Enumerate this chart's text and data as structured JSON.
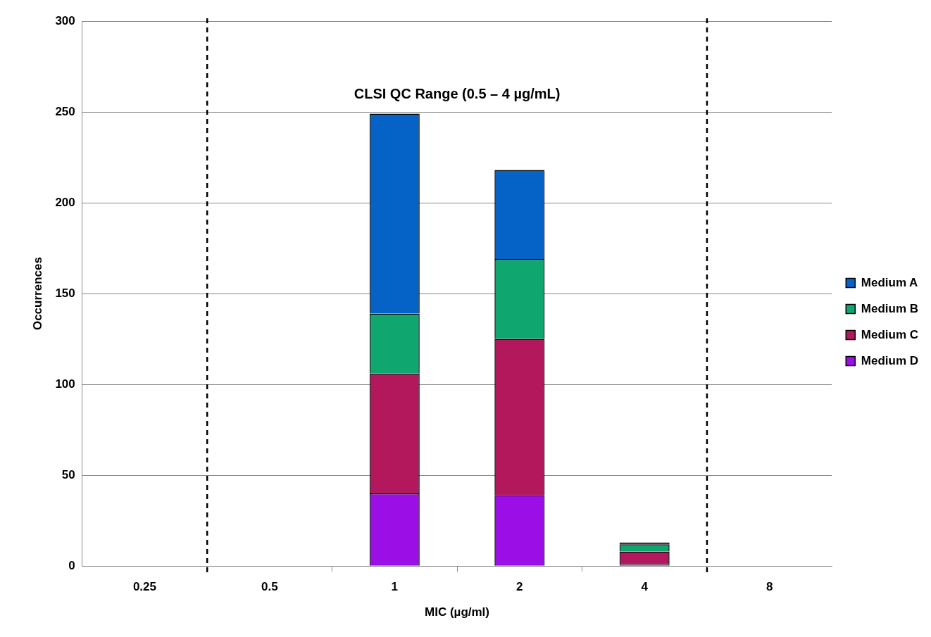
{
  "chart_data": {
    "type": "bar",
    "stacked": true,
    "xlabel": "MIC (µg/ml)",
    "ylabel": "Occurrences",
    "x": [
      0.25,
      0.5,
      1,
      2,
      4,
      8
    ],
    "log": "x",
    "xlim": [
      0.1768,
      11.31
    ],
    "xticks": [
      0.25,
      0.5,
      1,
      2,
      4,
      8
    ],
    "ylim": [
      0,
      300
    ],
    "yticks": [
      0,
      50,
      100,
      150,
      200,
      250,
      300
    ],
    "grid": "y",
    "legend": "right",
    "series": [
      {
        "name": "Medium D",
        "color": "#9b0ee6",
        "values": [
          0,
          0,
          40,
          39,
          1,
          0
        ]
      },
      {
        "name": "Medium C",
        "color": "#b3185c",
        "values": [
          0,
          0,
          66,
          86,
          7,
          0
        ]
      },
      {
        "name": "Medium B",
        "color": "#10a670",
        "values": [
          0,
          0,
          33,
          44,
          4,
          0
        ]
      },
      {
        "name": "Medium A",
        "color": "#0563c8",
        "values": [
          0,
          0,
          110,
          49,
          1,
          0
        ]
      }
    ],
    "ref_lines": [
      {
        "axis": "x",
        "value": 0.3536,
        "line_style": "dashed",
        "color": "#000000"
      },
      {
        "axis": "x",
        "value": 5.657,
        "line_style": "dashed",
        "color": "#000000"
      }
    ],
    "annotations": [
      "CLSI QC Range (0.5 – 4 µg/mL)"
    ]
  }
}
